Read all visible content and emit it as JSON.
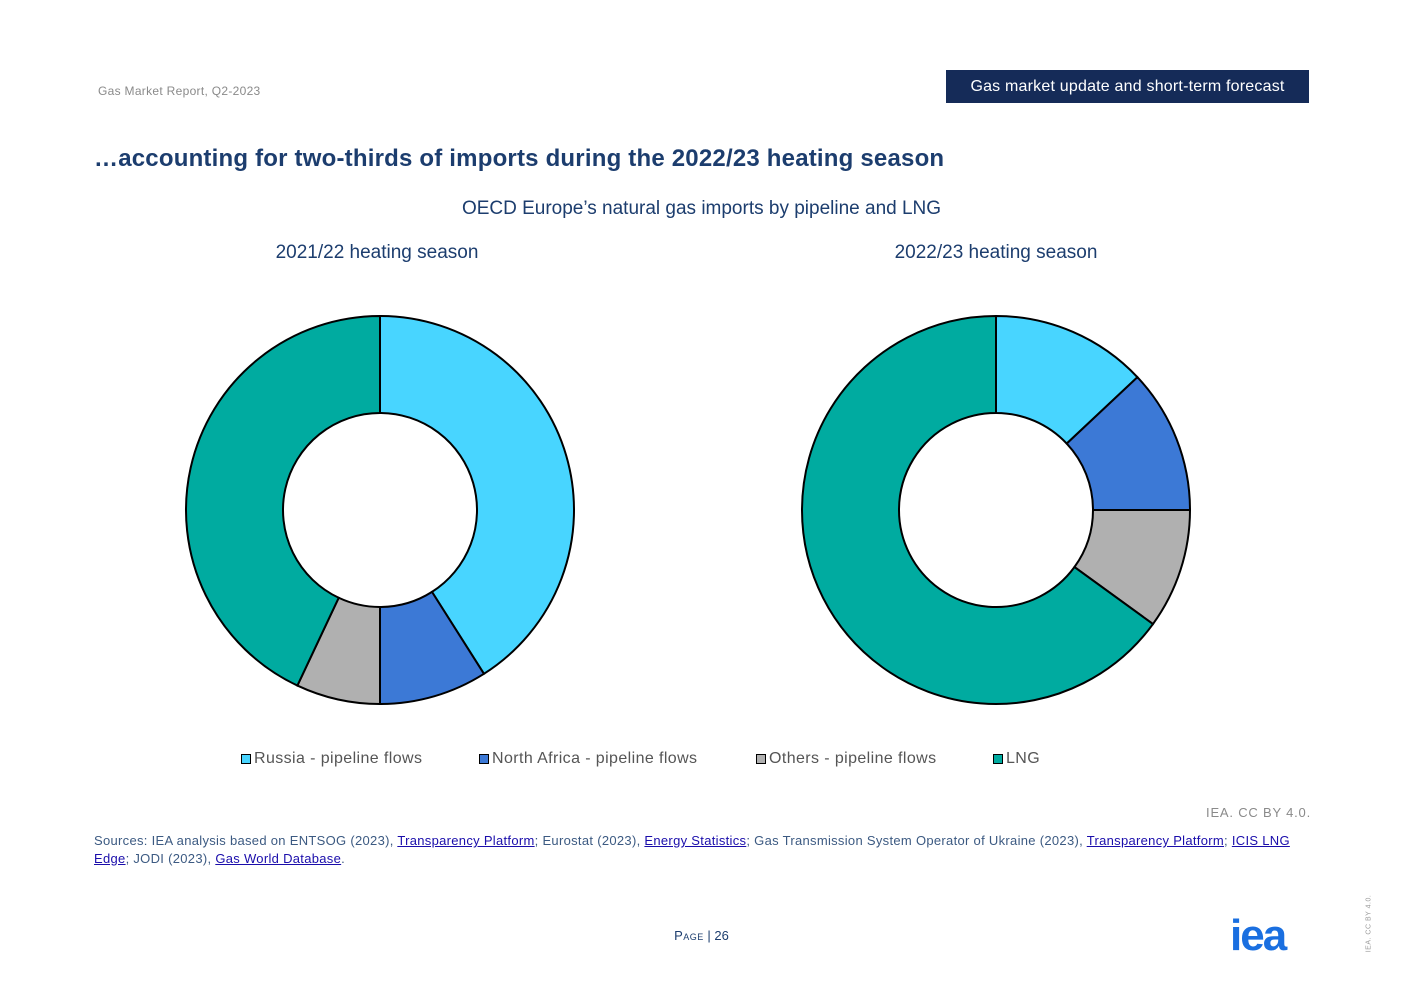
{
  "header": {
    "report_name": "Gas Market Report, Q2-2023",
    "section": "Gas market update and short-term forecast"
  },
  "slide_title": "…accounting for two-thirds of imports during the 2022/23 heating season",
  "colors": {
    "russia": "#48d5ff",
    "north_africa": "#3c79d6",
    "others": "#b0b0b0",
    "lng": "#00aba0",
    "header_bg": "#152b58",
    "title": "#1c3d6e"
  },
  "chart_data": [
    {
      "type": "pie",
      "donut": true,
      "title": "OECD Europe’s natural gas imports by pipeline and LNG",
      "subtitle": "2021/22 heating season",
      "categories": [
        "Russia - pipeline flows",
        "North Africa - pipeline flows",
        "Others - pipeline flows",
        "LNG"
      ],
      "values": [
        41,
        9,
        7,
        43
      ],
      "legend": "bottom"
    },
    {
      "type": "pie",
      "donut": true,
      "title": "OECD Europe’s natural gas imports by pipeline and LNG",
      "subtitle": "2022/23 heating season",
      "categories": [
        "Russia - pipeline flows",
        "North Africa - pipeline flows",
        "Others - pipeline flows",
        "LNG"
      ],
      "values": [
        13,
        12,
        10,
        65
      ],
      "legend": "bottom"
    }
  ],
  "legend": [
    {
      "label": "Russia - pipeline flows",
      "color": "#48d5ff"
    },
    {
      "label": "North Africa - pipeline flows",
      "color": "#3c79d6"
    },
    {
      "label": "Others - pipeline flows",
      "color": "#b0b0b0"
    },
    {
      "label": "LNG",
      "color": "#00aba0"
    }
  ],
  "credit": "IEA. CC BY 4.0.",
  "sources": {
    "p1": "Sources: IEA analysis based on ENTSOG (2023), ",
    "l1": "Transparency Platform",
    "p2": "; Eurostat (2023), ",
    "l2": "Energy Statistics",
    "p3": "; Gas Transmission System Operator of Ukraine (2023), ",
    "l3": "Transparency Platform",
    "p4": "; ",
    "l4": "ICIS LNG Edge",
    "p5": "; JODI (2023), ",
    "l5": "Gas World Database",
    "p6": "."
  },
  "footer": {
    "page_word": "Page",
    "page_number": "| 26",
    "logo_text": "iea",
    "vertical_note": "IEA. CC BY 4.0."
  }
}
